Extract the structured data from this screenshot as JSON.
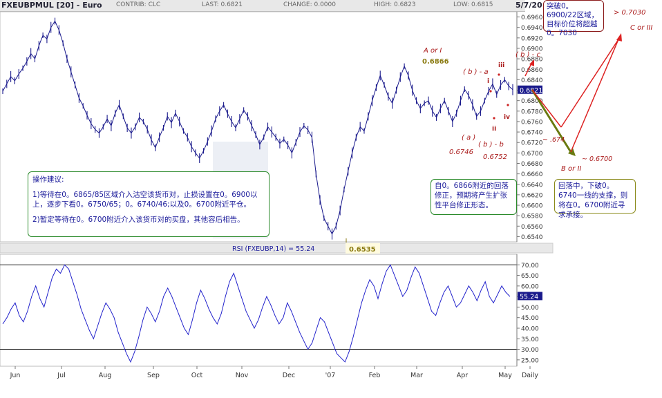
{
  "header": {
    "symbol": "FXEUBPMUL [20] - Euro",
    "contrib": "CONTRIB: CLC",
    "last": "LAST: 0.6821",
    "change": "CHANGE: 0.0000",
    "high": "HIGH: 0.6823",
    "low": "LOW: 0.6815",
    "date": "5/7/20"
  },
  "rsi_label": "RSI (FXEUBP,14) = 55.24",
  "price_tag": "0.6821",
  "rsi_tag": "55.24",
  "colors": {
    "price_line": "#1a1a8c",
    "rsi_line": "#2222cc",
    "tag_bg": "#1a1a8c",
    "wave_label": "#aa1a1a",
    "highlight": "#8a7a10",
    "forecast_up": "#dd2222",
    "forecast_down": "#6a7a10"
  },
  "annotations": {
    "advice_title": "操作建议:",
    "advice_1": "1)等待在0。6865/85区域介入沽空该货币对，止损设置在0。6900以上，逐步下看0。6750/65；0。6740/46;以及0。6700附近平仓。",
    "advice_2": "2)暂定等待在0。6700附近介入该货币对的买盘，其他容后相告。",
    "correction": "自0。6866附近的回落修正，预期将产生扩张性平台修正形态。",
    "breakout": "突破0。6900/22区域，目标价位将超越0。7030",
    "pullback": "回落中，下破0。6740一线的支撑，则将在0。6700附近寻求承接。"
  },
  "wave_labels": {
    "a_or_i": "A or I",
    "price_6866": "0.6866",
    "b_a": "( b ) - a",
    "b_c": "( b ) - c",
    "i": "i",
    "ii": "ii",
    "iii": "iii",
    "iv": "iv",
    "a": "( a )",
    "b_b": "( b ) - b",
    "p6746": "0.6746",
    "p6752": "0.6752",
    "p6535": "0.6535",
    "c_or_iii": "C or III",
    "b_or_ii": "B or II",
    "gt7030": "> 0.7030",
    "t6700": "~ 0.6700",
    "t674": "~ .674"
  },
  "chart_data": [
    {
      "type": "line",
      "title": "FXEUBPMUL [20] - Euro",
      "x_labels": [
        "Jun",
        "Jul",
        "Aug",
        "Sep",
        "Oct",
        "Nov",
        "Dec",
        "'07",
        "Feb",
        "Mar",
        "Apr",
        "May",
        "Daily"
      ],
      "y_ticks": [
        0.654,
        0.656,
        0.658,
        0.66,
        0.662,
        0.664,
        0.666,
        0.668,
        0.67,
        0.672,
        0.674,
        0.676,
        0.678,
        0.68,
        0.682,
        0.684,
        0.686,
        0.688,
        0.69,
        0.692,
        0.694,
        0.696
      ],
      "ylim": [
        0.653,
        0.697
      ],
      "series": [
        {
          "values": [
            0.6818,
            0.6832,
            0.6846,
            0.6838,
            0.6851,
            0.6862,
            0.6875,
            0.689,
            0.688,
            0.6905,
            0.6925,
            0.6918,
            0.694,
            0.6952,
            0.6935,
            0.691,
            0.688,
            0.6855,
            0.683,
            0.6805,
            0.679,
            0.6772,
            0.6756,
            0.6745,
            0.6738,
            0.675,
            0.6765,
            0.6752,
            0.6776,
            0.6792,
            0.677,
            0.6748,
            0.6738,
            0.675,
            0.6768,
            0.676,
            0.6745,
            0.6725,
            0.671,
            0.673,
            0.6748,
            0.677,
            0.6758,
            0.6776,
            0.676,
            0.6742,
            0.673,
            0.6712,
            0.67,
            0.669,
            0.6704,
            0.6722,
            0.6742,
            0.6765,
            0.678,
            0.6792,
            0.6775,
            0.676,
            0.6748,
            0.6765,
            0.6782,
            0.677,
            0.6752,
            0.6735,
            0.6716,
            0.673,
            0.675,
            0.674,
            0.673,
            0.6718,
            0.6726,
            0.6715,
            0.67,
            0.672,
            0.674,
            0.6752,
            0.6744,
            0.673,
            0.666,
            0.661,
            0.6575,
            0.656,
            0.6545,
            0.656,
            0.659,
            0.663,
            0.6665,
            0.67,
            0.673,
            0.675,
            0.6742,
            0.677,
            0.68,
            0.6825,
            0.6848,
            0.683,
            0.6808,
            0.6795,
            0.682,
            0.6845,
            0.6866,
            0.6848,
            0.682,
            0.68,
            0.6785,
            0.6795,
            0.68,
            0.678,
            0.6768,
            0.6785,
            0.68,
            0.678,
            0.676,
            0.6776,
            0.68,
            0.6822,
            0.681,
            0.6792,
            0.677,
            0.678,
            0.68,
            0.6818,
            0.6832,
            0.6812,
            0.683,
            0.684,
            0.6828,
            0.6821
          ]
        }
      ],
      "annotation_high": 0.6866,
      "annotation_low": 0.6535,
      "forecast_paths": [
        {
          "name": "up",
          "values": [
            0.6821,
            0.6746,
            0.703
          ]
        },
        {
          "name": "down",
          "values": [
            0.6821,
            0.67
          ]
        }
      ]
    },
    {
      "type": "line",
      "title": "RSI (FXEUBP,14) = 55.24",
      "y_ticks": [
        25,
        30,
        35,
        40,
        45,
        50,
        55,
        60,
        65,
        70
      ],
      "ylim": [
        22,
        75
      ],
      "reference_lines": [
        70,
        30
      ],
      "series": [
        {
          "values": [
            42,
            45,
            49,
            52,
            46,
            43,
            48,
            55,
            60,
            54,
            50,
            57,
            64,
            68,
            66,
            70,
            68,
            62,
            56,
            49,
            44,
            39,
            35,
            41,
            47,
            52,
            49,
            45,
            38,
            33,
            28,
            24,
            29,
            36,
            44,
            50,
            47,
            43,
            48,
            55,
            59,
            55,
            50,
            45,
            40,
            37,
            44,
            52,
            58,
            54,
            49,
            45,
            42,
            47,
            55,
            62,
            66,
            60,
            54,
            48,
            44,
            40,
            44,
            50,
            55,
            51,
            46,
            42,
            45,
            52,
            48,
            43,
            38,
            34,
            30,
            33,
            39,
            45,
            43,
            38,
            33,
            28,
            26,
            24,
            29,
            36,
            44,
            52,
            58,
            63,
            60,
            54,
            61,
            67,
            70,
            65,
            60,
            55,
            58,
            64,
            69,
            66,
            60,
            54,
            48,
            46,
            52,
            57,
            60,
            55,
            50,
            52,
            56,
            60,
            57,
            53,
            58,
            62,
            55,
            52,
            56,
            60,
            57,
            55
          ]
        }
      ]
    }
  ]
}
